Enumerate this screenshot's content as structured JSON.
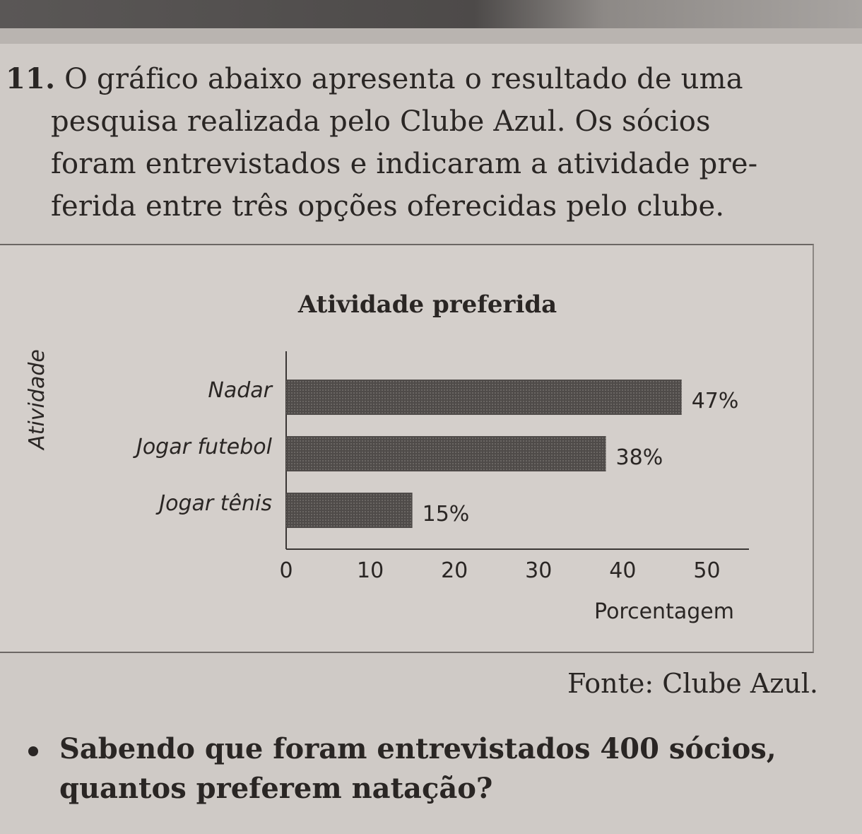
{
  "question": {
    "number": "11.",
    "lines": [
      "O gráfico abaixo apresenta o resultado de uma",
      "pesquisa realizada pelo Clube Azul. Os sócios",
      "foram entrevistados e indicaram a atividade pre-",
      "ferida entre três opções oferecidas pelo clube."
    ]
  },
  "chart_data": {
    "type": "bar",
    "orientation": "horizontal",
    "title": "Atividade preferida",
    "xlabel": "Porcentagem",
    "ylabel": "Atividade",
    "categories": [
      "Nadar",
      "Jogar futebol",
      "Jogar tênis"
    ],
    "values": [
      47,
      38,
      15
    ],
    "data_labels": [
      "47%",
      "38%",
      "15%"
    ],
    "xlim": [
      0,
      55
    ],
    "xticks": [
      "0",
      "10",
      "20",
      "30",
      "40",
      "50"
    ],
    "grid": false,
    "bar_color": "#4f4b49"
  },
  "source": "Fonte: Clube Azul.",
  "prompt": {
    "line1": "Sabendo que foram entrevistados 400 sócios,",
    "line2": "quantos preferem natação?"
  }
}
